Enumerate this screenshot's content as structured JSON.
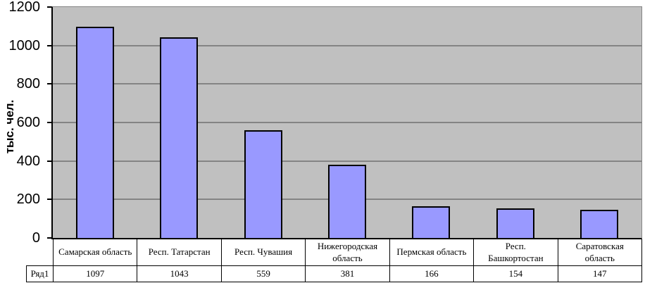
{
  "chart_data": {
    "type": "bar",
    "title": "",
    "xlabel": "",
    "ylabel": "тыс. чел.",
    "categories": [
      "Самарская область",
      "Респ. Татарстан",
      "Респ. Чувашия",
      "Нижегородская область",
      "Пермская область",
      "Респ. Башкортостан",
      "Саратовская область"
    ],
    "series": [
      {
        "name": "Ряд1",
        "values": [
          1097,
          1043,
          559,
          381,
          166,
          154,
          147
        ]
      }
    ],
    "ylim": [
      0,
      1200
    ],
    "yticks": [
      0,
      200,
      400,
      600,
      800,
      1000,
      1200
    ],
    "grid": true,
    "legend_position": "none",
    "data_table_visible": true,
    "colors": {
      "bar_fill": "#9999FF",
      "bar_border": "#000000",
      "plot_bg": "#C0C0C0",
      "gridline": "#848484",
      "axis": "#000000",
      "background": "#FFFFFF"
    }
  }
}
